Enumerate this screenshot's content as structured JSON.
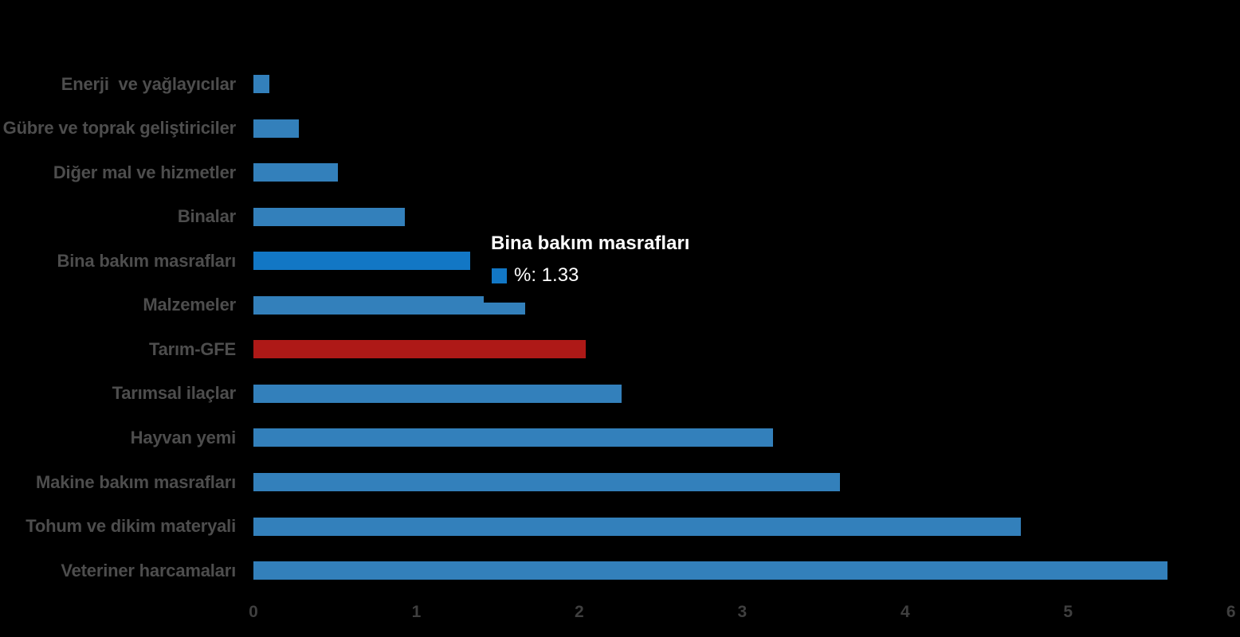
{
  "chart_data": {
    "type": "bar",
    "orientation": "horizontal",
    "title": "",
    "xlabel": "",
    "ylabel": "",
    "xlim": [
      0,
      6
    ],
    "x_ticks": [
      "0",
      "1",
      "2",
      "3",
      "4",
      "5",
      "6"
    ],
    "grid": false,
    "legend_position": "none",
    "series_name": "%",
    "bars": [
      {
        "label": "Enerji  ve yağlayıcılar",
        "value": 0.1,
        "state": "normal"
      },
      {
        "label": "Gübre ve toprak geliştiriciler",
        "value": 0.28,
        "state": "normal"
      },
      {
        "label": "Diğer mal ve hizmetler",
        "value": 0.52,
        "state": "normal"
      },
      {
        "label": "Binalar",
        "value": 0.93,
        "state": "normal"
      },
      {
        "label": "Bina bakım masrafları",
        "value": 1.33,
        "state": "hover"
      },
      {
        "label": "Malzemeler",
        "value": 1.67,
        "state": "normal"
      },
      {
        "label": "Tarım-GFE",
        "value": 2.04,
        "state": "highlight"
      },
      {
        "label": "Tarımsal ilaçlar",
        "value": 2.26,
        "state": "normal"
      },
      {
        "label": "Hayvan yemi",
        "value": 3.19,
        "state": "normal"
      },
      {
        "label": "Makine bakım masrafları",
        "value": 3.6,
        "state": "normal"
      },
      {
        "label": "Tohum ve dikim materyali",
        "value": 4.71,
        "state": "normal"
      },
      {
        "label": "Veteriner harcamaları",
        "value": 5.61,
        "state": "normal"
      }
    ],
    "colors": {
      "bar": "#3380BB",
      "bar_hover": "#1277C5",
      "bar_highlight": "#AE1917",
      "background": "#000000",
      "category_label": "#4D4D4D",
      "tick_label": "#3F3F3F",
      "tooltip_text": "#FFFFFF"
    }
  },
  "tooltip": {
    "title": "Bina bakım masrafları",
    "series_label": "%",
    "value": "1.33",
    "value_text": "%: 1.33"
  }
}
